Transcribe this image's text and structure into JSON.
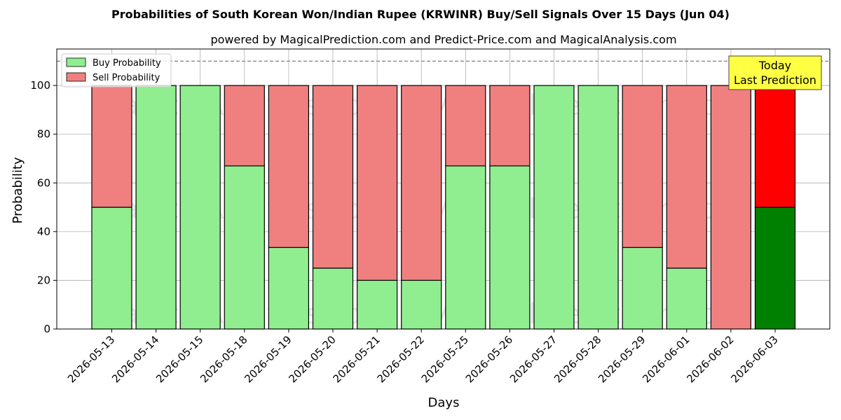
{
  "chart_data": {
    "type": "bar",
    "stacked": true,
    "title": "Probabilities of South Korean Won/Indian Rupee (KRWINR) Buy/Sell Signals Over 15 Days (Jun 04)",
    "subtitle": "powered by MagicalPrediction.com and Predict-Price.com and MagicalAnalysis.com",
    "xlabel": "Days",
    "ylabel": "Probability",
    "ylim": [
      0,
      115
    ],
    "yticks": [
      0,
      20,
      40,
      60,
      80,
      100
    ],
    "grid": true,
    "legend_position": "top-left",
    "threshold_line": 110,
    "categories": [
      "2026-05-13",
      "2026-05-14",
      "2026-05-15",
      "2026-05-18",
      "2026-05-19",
      "2026-05-20",
      "2026-05-21",
      "2026-05-22",
      "2026-05-25",
      "2026-05-26",
      "2026-05-27",
      "2026-05-28",
      "2026-05-29",
      "2026-06-01",
      "2026-06-02",
      "2026-06-03"
    ],
    "series": [
      {
        "name": "Buy Probability",
        "color": "#90ee90",
        "highlight_color": "#008000",
        "values": [
          50,
          100,
          100,
          67,
          33.5,
          25,
          20,
          20,
          67,
          67,
          100,
          100,
          33.5,
          25,
          0,
          50
        ]
      },
      {
        "name": "Sell Probability",
        "color": "#f08080",
        "highlight_color": "#ff0000",
        "values": [
          50,
          0,
          0,
          33,
          66.5,
          75,
          80,
          80,
          33,
          33,
          0,
          0,
          66.5,
          75,
          100,
          50
        ]
      }
    ],
    "highlight_index": 15,
    "annotation": {
      "lines": [
        "Today",
        "Last Prediction"
      ],
      "background": "#ffff44"
    },
    "watermarks": [
      "MagicalAnalysis.com",
      "MagicalPrediction.com"
    ]
  }
}
